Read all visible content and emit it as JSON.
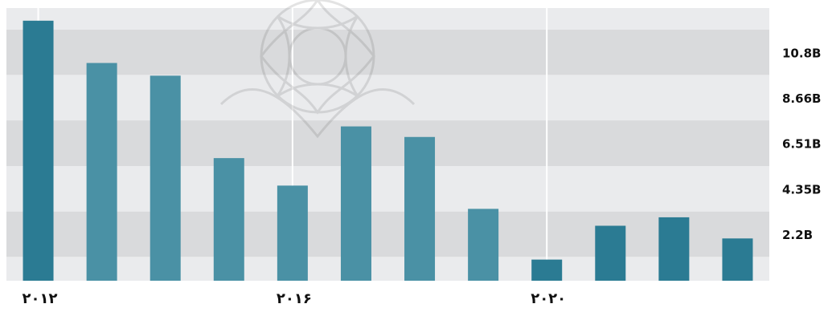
{
  "chart_data": {
    "type": "bar",
    "categories": [
      "۲۰۱۲",
      "",
      "",
      "",
      "۲۰۱۶",
      "",
      "",
      "",
      "۲۰۲۰",
      "",
      "",
      ""
    ],
    "values": [
      12.3,
      10.3,
      9.7,
      5.8,
      4.5,
      7.3,
      6.8,
      3.4,
      1.0,
      2.6,
      3.0,
      2.0
    ],
    "ylim": [
      0,
      12.9
    ],
    "y_ticks": [
      {
        "value": 2.2,
        "label": "2.2B"
      },
      {
        "value": 4.35,
        "label": "4.35B"
      },
      {
        "value": 6.51,
        "label": "6.51B"
      },
      {
        "value": 8.66,
        "label": "8.66B"
      },
      {
        "value": 10.8,
        "label": "10.8B"
      }
    ],
    "x_tick_labels": [
      "۲۰۱۲",
      "۲۰۱۶",
      "۲۰۲۰"
    ],
    "y_axis_position": "right",
    "grid": true,
    "colors": {
      "bar_dark": "#2b7b93",
      "bar_light": "#4a91a5",
      "band_light": "#eaebed",
      "band_dark": "#d9dadc",
      "gridline": "#ffffff",
      "label": "#111111"
    },
    "highlighted_bars": [
      0,
      8,
      9,
      10,
      11
    ]
  }
}
